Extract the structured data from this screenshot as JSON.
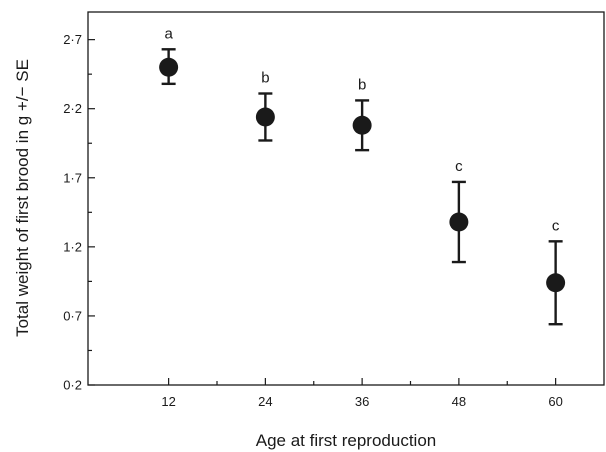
{
  "chart_data": {
    "type": "scatter",
    "title": "",
    "xlabel": "Age at first reproduction",
    "ylabel": "Total weight of first brood in g +/− SE",
    "x_ticks": [
      "12",
      "24",
      "36",
      "48",
      "60"
    ],
    "y_ticks": [
      "0·2",
      "0·7",
      "1·2",
      "1·7",
      "2·2",
      "2·7"
    ],
    "y_tick_values": [
      0.2,
      0.7,
      1.2,
      1.7,
      2.2,
      2.7
    ],
    "xlim": [
      2,
      66
    ],
    "ylim": [
      0.2,
      2.9
    ],
    "grid": false,
    "points": [
      {
        "x": 12,
        "y": 2.5,
        "se_low": 2.38,
        "se_high": 2.63,
        "label": "a"
      },
      {
        "x": 24,
        "y": 2.14,
        "se_low": 1.97,
        "se_high": 2.31,
        "label": "b"
      },
      {
        "x": 36,
        "y": 2.08,
        "se_low": 1.9,
        "se_high": 2.26,
        "label": "b"
      },
      {
        "x": 48,
        "y": 1.38,
        "se_low": 1.09,
        "se_high": 1.67,
        "label": "c"
      },
      {
        "x": 60,
        "y": 0.94,
        "se_low": 0.64,
        "se_high": 1.24,
        "label": "c"
      }
    ]
  }
}
